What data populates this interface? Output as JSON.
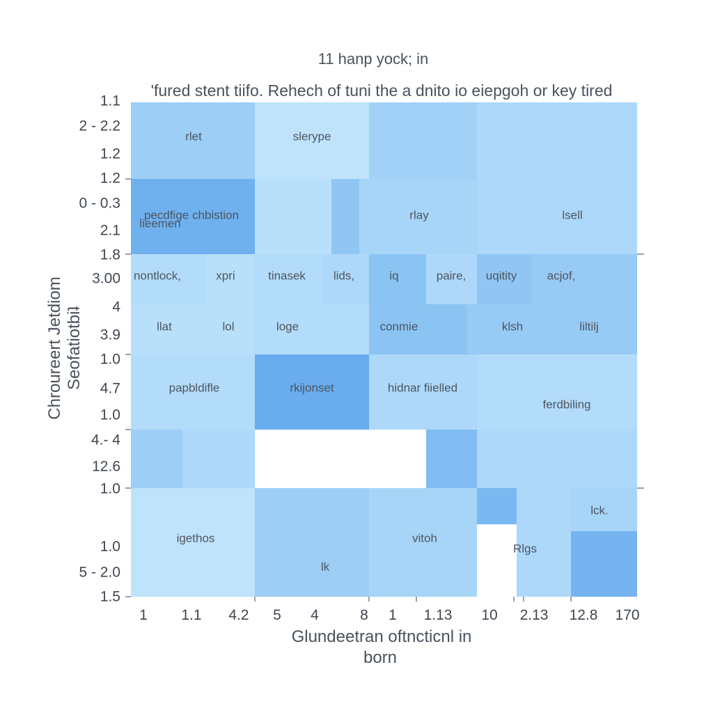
{
  "chart_data": {
    "type": "heatmap",
    "title": "11 hanp yock; in",
    "subtitle": "'fured stent tiifo. Rehech of tuni the a dnito io eiepgoh or key tired",
    "xlabel": [
      "Glundeetran oftncticnl in",
      "born"
    ],
    "ylabel": [
      "Chroureert Jetdiom",
      "Seofatiotbiʇ"
    ],
    "x_ticks": [
      "1",
      "1.1",
      "4.2",
      "5",
      "4",
      "8",
      "1",
      "1.13",
      "10",
      "2.13",
      "12.8",
      "170"
    ],
    "y_ticks": [
      "1.1",
      "2 - 2.2",
      "1.2",
      "1.2",
      "0 - 0.3",
      "2.1",
      "1.8",
      "3.00",
      "4",
      "3.9",
      "1.0",
      "4.7",
      "1.0",
      "4.- 4",
      "12.6",
      "1.0",
      "1.0",
      "5 - 2.0",
      "1.5"
    ],
    "cells": [
      {
        "label": "rlet",
        "intensity": 0.45
      },
      {
        "label": "slerype",
        "intensity": 0.15
      },
      {
        "label": "",
        "intensity": 0.4
      },
      {
        "label": "",
        "intensity": 0.3
      },
      {
        "label": "pecdfige chbistion lieemen",
        "intensity": 0.85
      },
      {
        "label": "",
        "intensity": 0.2
      },
      {
        "label": "",
        "intensity": 0.55
      },
      {
        "label": "rlay",
        "intensity": 0.35
      },
      {
        "label": "lsell",
        "intensity": 0.3
      },
      {
        "label": "nontlock,",
        "intensity": 0.25
      },
      {
        "label": "xpri",
        "intensity": 0.2
      },
      {
        "label": "tinasek",
        "intensity": 0.25
      },
      {
        "label": "lids,",
        "intensity": 0.3
      },
      {
        "label": "iq",
        "intensity": 0.6
      },
      {
        "label": "paire,",
        "intensity": 0.3
      },
      {
        "label": "uqitity",
        "intensity": 0.55
      },
      {
        "label": "acjof,",
        "intensity": 0.5
      },
      {
        "label": "llat",
        "intensity": 0.2
      },
      {
        "label": "lol",
        "intensity": 0.2
      },
      {
        "label": "loge",
        "intensity": 0.25
      },
      {
        "label": "conmie",
        "intensity": 0.6
      },
      {
        "label": "klsh",
        "intensity": 0.5
      },
      {
        "label": "liltilj",
        "intensity": 0.5
      },
      {
        "label": "papbldifle",
        "intensity": 0.25
      },
      {
        "label": "rkijonset",
        "intensity": 0.9
      },
      {
        "label": "hidnar fiielled",
        "intensity": 0.3
      },
      {
        "label": "ferdbiling",
        "intensity": 0.25
      },
      {
        "label": "",
        "intensity": 0.45
      },
      {
        "label": "",
        "intensity": 0.3
      },
      {
        "label": "",
        "intensity": 0.7
      },
      {
        "label": "",
        "intensity": 0.3
      },
      {
        "label": "igethos",
        "intensity": 0.15
      },
      {
        "label": "lk",
        "intensity": 0.45
      },
      {
        "label": "vitoh",
        "intensity": 0.35
      },
      {
        "label": "",
        "intensity": 0.75
      },
      {
        "label": "Rlgs",
        "intensity": 0.3
      },
      {
        "label": "lck.",
        "intensity": 0.35
      },
      {
        "label": "",
        "intensity": 0.8
      }
    ],
    "grid": false,
    "legend": "none"
  },
  "colors": {
    "low": "#cfeefe",
    "high": "#5ea6ec",
    "text": "#3e4651",
    "background": "#ffffff"
  }
}
